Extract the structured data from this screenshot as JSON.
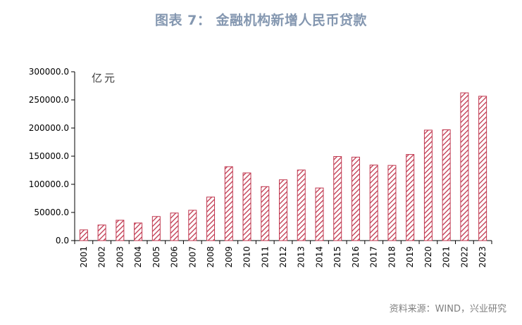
{
  "title": "图表 7： 金融机构新增人民币贷款",
  "unit_label": "亿元",
  "source": "资料来源：WIND，兴业研究",
  "chart_data": {
    "type": "bar",
    "categories": [
      "2001",
      "2002",
      "2003",
      "2004",
      "2005",
      "2006",
      "2007",
      "2008",
      "2009",
      "2010",
      "2011",
      "2012",
      "2013",
      "2014",
      "2015",
      "2016",
      "2017",
      "2018",
      "2019",
      "2020",
      "2021",
      "2022",
      "2023"
    ],
    "values": [
      19000,
      27700,
      36200,
      31300,
      42800,
      49000,
      53900,
      77400,
      131300,
      120200,
      95900,
      108000,
      125400,
      93500,
      149400,
      148300,
      134200,
      133600,
      153000,
      196300,
      196900,
      262500,
      256500
    ],
    "ylim": [
      0,
      300000
    ],
    "yticks": [
      "0.0",
      "50000.0",
      "100000.0",
      "150000.0",
      "200000.0",
      "250000.0",
      "300000.0"
    ],
    "bar_color": "#c0364e",
    "bar_pattern": "diagonal-hatch",
    "grid": false
  }
}
